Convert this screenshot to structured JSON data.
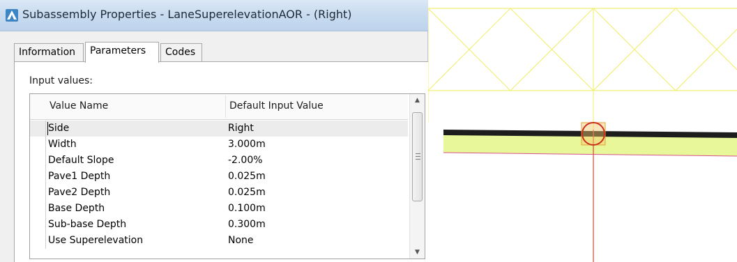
{
  "dialog": {
    "title": "Subassembly Properties - LaneSuperelevationAOR - (Right)",
    "tabs": [
      {
        "label": "Information",
        "active": false
      },
      {
        "label": "Parameters",
        "active": true
      },
      {
        "label": "Codes",
        "active": false
      }
    ],
    "input_values_label": "Input values:",
    "grid": {
      "columns": [
        "Value Name",
        "Default Input Value"
      ],
      "rows": [
        {
          "name": "Side",
          "value": "Right",
          "selected": true
        },
        {
          "name": "Width",
          "value": "3.000m"
        },
        {
          "name": "Default Slope",
          "value": "-2.00%"
        },
        {
          "name": "Pave1 Depth",
          "value": "0.025m"
        },
        {
          "name": "Pave2 Depth",
          "value": "0.025m"
        },
        {
          "name": "Base Depth",
          "value": "0.100m"
        },
        {
          "name": "Sub-base Depth",
          "value": "0.300m"
        },
        {
          "name": "Use Superelevation",
          "value": "None"
        }
      ]
    }
  },
  "viewport": {
    "colors": {
      "frame": "#f2ef7a",
      "pavement": "#1d1d1d",
      "fill": "#e8f79a",
      "marker": "#c9301c",
      "axis": "#d4453a",
      "outline": "#d8508a"
    }
  }
}
